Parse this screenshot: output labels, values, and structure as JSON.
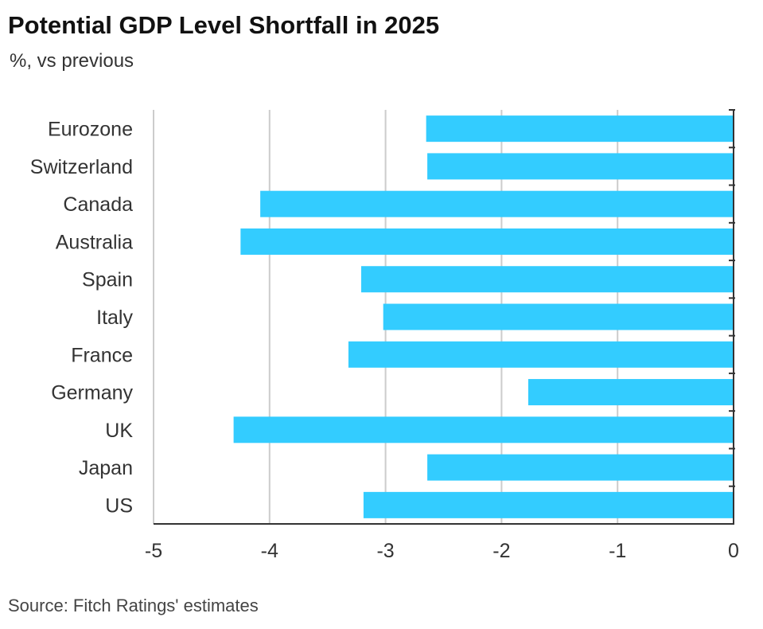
{
  "title": "Potential GDP Level Shortfall in 2025",
  "subtitle": "%, vs previous",
  "source": "Source: Fitch Ratings' estimates",
  "chart_data": {
    "type": "bar",
    "orientation": "horizontal",
    "title": "Potential GDP Level Shortfall in 2025",
    "subtitle": "%, vs previous",
    "categories": [
      "Eurozone",
      "Switzerland",
      "Canada",
      "Australia",
      "Spain",
      "Italy",
      "France",
      "Germany",
      "UK",
      "Japan",
      "US"
    ],
    "values": [
      -2.65,
      -2.64,
      -4.08,
      -4.25,
      -3.21,
      -3.02,
      -3.32,
      -1.77,
      -4.31,
      -2.64,
      -3.19
    ],
    "xlim": [
      -5,
      0
    ],
    "xticks": [
      "-5",
      "-4",
      "-3",
      "-2",
      "-1",
      "0"
    ],
    "grid": true,
    "bar_color": "#33ccff",
    "grid_color": "#cccccc"
  }
}
